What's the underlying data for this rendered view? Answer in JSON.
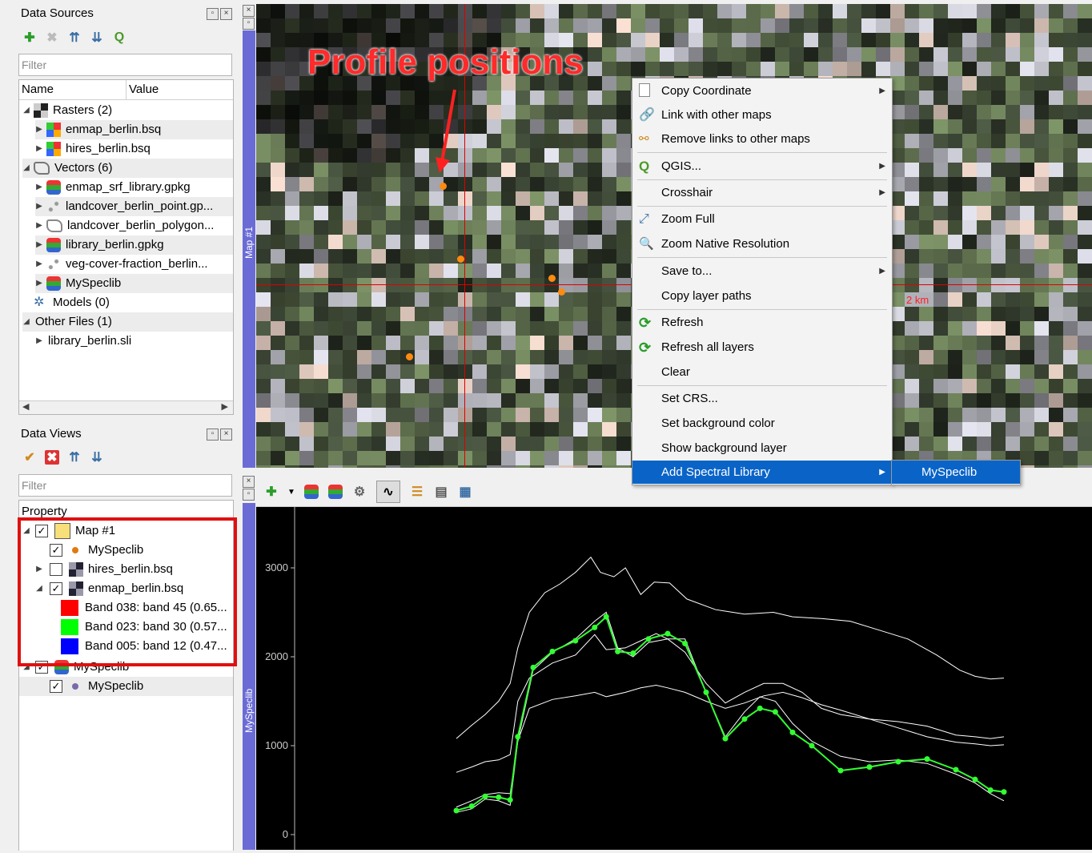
{
  "data_sources": {
    "title": "Data Sources",
    "filter_placeholder": "Filter",
    "col_name": "Name",
    "col_value": "Value",
    "rows": [
      {
        "label": "Rasters (2)"
      },
      {
        "label": "enmap_berlin.bsq"
      },
      {
        "label": "hires_berlin.bsq"
      },
      {
        "label": "Vectors (6)"
      },
      {
        "label": "enmap_srf_library.gpkg"
      },
      {
        "label": "landcover_berlin_point.gp..."
      },
      {
        "label": "landcover_berlin_polygon..."
      },
      {
        "label": "library_berlin.gpkg"
      },
      {
        "label": "veg-cover-fraction_berlin..."
      },
      {
        "label": "MySpeclib"
      },
      {
        "label": "Models (0)"
      },
      {
        "label": "Other Files (1)"
      },
      {
        "label": "library_berlin.sli"
      }
    ]
  },
  "data_views": {
    "title": "Data Views",
    "filter_placeholder": "Filter",
    "col_property": "Property",
    "rows": [
      {
        "label": "Map #1"
      },
      {
        "label": "MySpeclib"
      },
      {
        "label": "hires_berlin.bsq"
      },
      {
        "label": "enmap_berlin.bsq"
      },
      {
        "label": "Band 038: band 45 (0.65..."
      },
      {
        "label": "Band 023: band 30 (0.57..."
      },
      {
        "label": "Band 005: band 12 (0.47..."
      },
      {
        "label": "MySpeclib"
      },
      {
        "label": "MySpeclib"
      }
    ],
    "band_colors": [
      "#ff0000",
      "#00ff00",
      "#0000ff"
    ]
  },
  "map": {
    "side_label": "Map #1",
    "annotation": "Profile positions",
    "scale_label": "2 km"
  },
  "speclib": {
    "side_label": "MySpeclib"
  },
  "context_menu": {
    "items": [
      {
        "label": "Copy Coordinate",
        "icon": "copy-icon",
        "submenu": true
      },
      {
        "label": "Link with other maps",
        "icon": "link-icon"
      },
      {
        "label": "Remove links to other maps",
        "icon": "unlink-icon"
      },
      {
        "label": "QGIS...",
        "icon": "qgis-icon",
        "submenu": true
      },
      {
        "label": "Crosshair",
        "submenu": true
      },
      {
        "label": "Zoom Full",
        "icon": "zoom-full-icon"
      },
      {
        "label": "Zoom Native Resolution",
        "icon": "zoom-native-icon"
      },
      {
        "label": "Save to...",
        "submenu": true
      },
      {
        "label": "Copy layer paths"
      },
      {
        "label": "Refresh",
        "icon": "refresh-icon"
      },
      {
        "label": "Refresh all layers",
        "icon": "refresh-icon"
      },
      {
        "label": "Clear"
      },
      {
        "label": "Set CRS..."
      },
      {
        "label": "Set background color"
      },
      {
        "label": "Show background layer"
      },
      {
        "label": "Add Spectral Library",
        "submenu": true
      }
    ],
    "submenu_item": "MySpeclib"
  },
  "chart_data": {
    "type": "line",
    "yticks": [
      "3000",
      "2000",
      "1000",
      "0"
    ],
    "ylim": [
      0,
      3400
    ],
    "series": [
      {
        "color": "#ffffff",
        "values": [
          [
            0,
            1080
          ],
          [
            8,
            1230
          ],
          [
            15,
            1350
          ],
          [
            22,
            1500
          ],
          [
            28,
            1700
          ],
          [
            32,
            2100
          ],
          [
            38,
            2500
          ],
          [
            46,
            2720
          ],
          [
            54,
            2820
          ],
          [
            62,
            2950
          ],
          [
            70,
            3120
          ],
          [
            75,
            2950
          ],
          [
            82,
            2900
          ],
          [
            88,
            3000
          ],
          [
            96,
            2700
          ],
          [
            103,
            2840
          ],
          [
            111,
            2830
          ],
          [
            120,
            2650
          ],
          [
            135,
            2530
          ],
          [
            150,
            2480
          ],
          [
            165,
            2500
          ],
          [
            175,
            2450
          ],
          [
            190,
            2430
          ],
          [
            205,
            2400
          ],
          [
            220,
            2300
          ],
          [
            235,
            2200
          ],
          [
            250,
            2020
          ],
          [
            262,
            1850
          ],
          [
            270,
            1780
          ],
          [
            278,
            1750
          ],
          [
            285,
            1760
          ]
        ]
      },
      {
        "color": "#ffffff",
        "values": [
          [
            0,
            700
          ],
          [
            8,
            760
          ],
          [
            15,
            820
          ],
          [
            22,
            840
          ],
          [
            28,
            900
          ],
          [
            32,
            1500
          ],
          [
            38,
            1760
          ],
          [
            50,
            1930
          ],
          [
            62,
            2020
          ],
          [
            72,
            2250
          ],
          [
            78,
            2080
          ],
          [
            88,
            2100
          ],
          [
            96,
            2180
          ],
          [
            104,
            2260
          ],
          [
            110,
            2200
          ],
          [
            119,
            2050
          ],
          [
            130,
            1700
          ],
          [
            140,
            1480
          ],
          [
            150,
            1600
          ],
          [
            160,
            1700
          ],
          [
            170,
            1700
          ],
          [
            180,
            1600
          ],
          [
            190,
            1420
          ],
          [
            200,
            1350
          ],
          [
            215,
            1300
          ],
          [
            230,
            1270
          ],
          [
            245,
            1220
          ],
          [
            260,
            1120
          ],
          [
            270,
            1100
          ],
          [
            278,
            1080
          ],
          [
            285,
            1100
          ]
        ]
      },
      {
        "color": "#ffffff",
        "values": [
          [
            0,
            310
          ],
          [
            8,
            380
          ],
          [
            15,
            450
          ],
          [
            22,
            470
          ],
          [
            28,
            460
          ],
          [
            32,
            1050
          ],
          [
            38,
            1420
          ],
          [
            50,
            1520
          ],
          [
            62,
            1560
          ],
          [
            72,
            1600
          ],
          [
            78,
            1550
          ],
          [
            88,
            1600
          ],
          [
            96,
            1650
          ],
          [
            104,
            1680
          ],
          [
            110,
            1650
          ],
          [
            119,
            1600
          ],
          [
            130,
            1500
          ],
          [
            140,
            1420
          ],
          [
            150,
            1480
          ],
          [
            160,
            1560
          ],
          [
            170,
            1600
          ],
          [
            180,
            1540
          ],
          [
            190,
            1460
          ],
          [
            200,
            1400
          ],
          [
            215,
            1300
          ],
          [
            230,
            1200
          ],
          [
            245,
            1100
          ],
          [
            260,
            1040
          ],
          [
            270,
            1020
          ],
          [
            278,
            1000
          ],
          [
            285,
            1010
          ]
        ]
      },
      {
        "color": "#ffffff",
        "values": [
          [
            0,
            250
          ],
          [
            8,
            290
          ],
          [
            15,
            400
          ],
          [
            22,
            380
          ],
          [
            28,
            330
          ],
          [
            32,
            1050
          ],
          [
            40,
            1850
          ],
          [
            50,
            2050
          ],
          [
            62,
            2200
          ],
          [
            72,
            2400
          ],
          [
            78,
            2500
          ],
          [
            84,
            2100
          ],
          [
            92,
            2000
          ],
          [
            100,
            2160
          ],
          [
            110,
            2200
          ],
          [
            119,
            2200
          ],
          [
            130,
            1600
          ],
          [
            140,
            1100
          ],
          [
            150,
            1380
          ],
          [
            158,
            1550
          ],
          [
            166,
            1500
          ],
          [
            175,
            1250
          ],
          [
            185,
            1050
          ],
          [
            200,
            880
          ],
          [
            215,
            820
          ],
          [
            230,
            840
          ],
          [
            245,
            800
          ],
          [
            260,
            680
          ],
          [
            270,
            580
          ],
          [
            278,
            460
          ],
          [
            285,
            380
          ]
        ]
      },
      {
        "color": "#33ff33",
        "points": true,
        "values": [
          [
            0,
            270
          ],
          [
            8,
            320
          ],
          [
            15,
            430
          ],
          [
            22,
            420
          ],
          [
            28,
            390
          ],
          [
            32,
            1100
          ],
          [
            40,
            1880
          ],
          [
            50,
            2060
          ],
          [
            62,
            2180
          ],
          [
            72,
            2330
          ],
          [
            78,
            2450
          ],
          [
            84,
            2060
          ],
          [
            92,
            2040
          ],
          [
            100,
            2200
          ],
          [
            110,
            2260
          ],
          [
            119,
            2150
          ],
          [
            130,
            1600
          ],
          [
            140,
            1080
          ],
          [
            150,
            1300
          ],
          [
            158,
            1420
          ],
          [
            166,
            1380
          ],
          [
            175,
            1150
          ],
          [
            185,
            1000
          ],
          [
            200,
            720
          ],
          [
            215,
            760
          ],
          [
            230,
            820
          ],
          [
            245,
            850
          ],
          [
            260,
            730
          ],
          [
            270,
            620
          ],
          [
            278,
            500
          ],
          [
            285,
            480
          ]
        ]
      }
    ]
  }
}
